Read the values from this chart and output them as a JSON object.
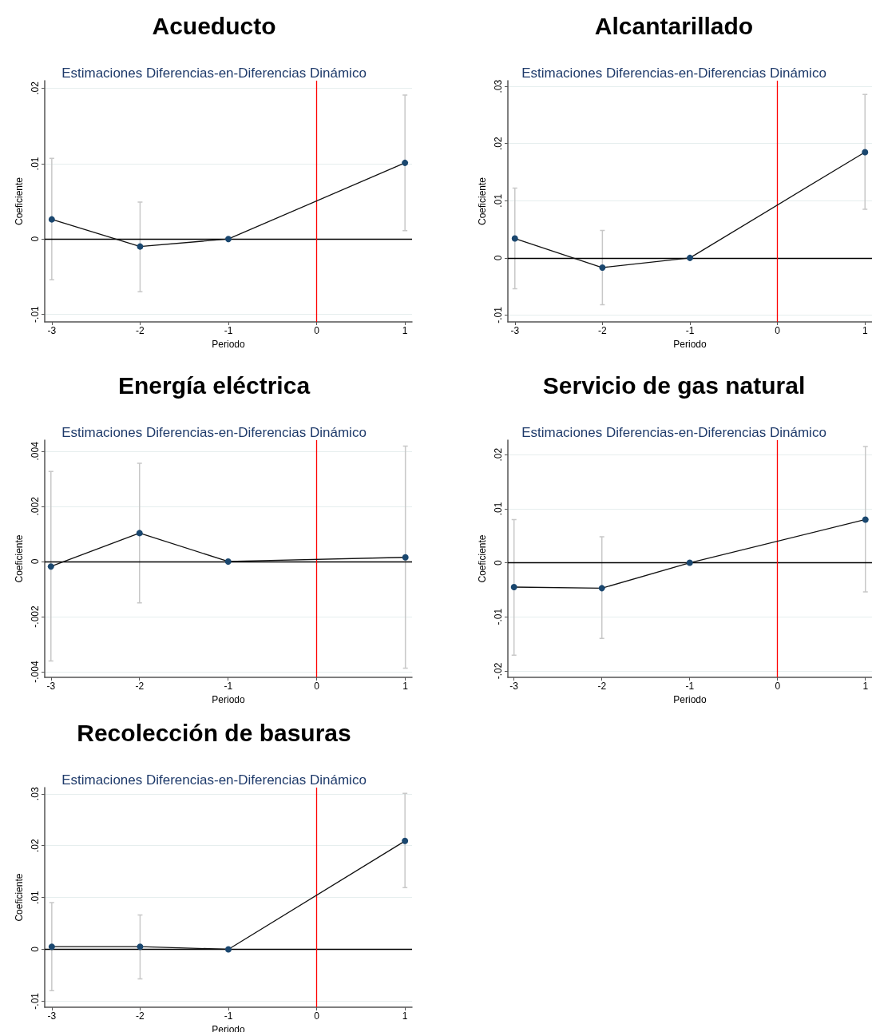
{
  "chart_data": [
    {
      "type": "line",
      "title": "Acueducto",
      "subtitle": "Estimaciones Diferencias-en-Diferencias Dinámico",
      "xlabel": "Periodo",
      "ylabel": "Coeficiente",
      "x": [
        -3,
        -2,
        -1,
        1
      ],
      "series": [
        {
          "color": "#1a476f",
          "values": [
            0.0026,
            -0.001,
            0,
            0.0101
          ],
          "errors": [
            [
              -0.0054,
              0.0107
            ],
            [
              -0.007,
              0.0049
            ],
            null,
            [
              0.0011,
              0.0191
            ]
          ]
        }
      ],
      "xlim": [
        -3.08,
        1.08
      ],
      "xticks": [
        -3,
        -2,
        -1,
        0,
        1
      ],
      "ylim": [
        -0.011,
        0.021
      ],
      "yticks": [
        {
          "value": -0.01,
          "label": "-.01"
        },
        {
          "value": 0,
          "label": "0"
        },
        {
          "value": 0.01,
          "label": ".01"
        },
        {
          "value": 0.02,
          "label": ".02"
        }
      ],
      "ref_lines": [
        {
          "axis": "y",
          "value": 0,
          "color": "#000000"
        },
        {
          "axis": "x",
          "value": 0,
          "color": "#ff0000"
        }
      ],
      "grid": "y",
      "marker": "circle",
      "line_style": "solid"
    },
    {
      "type": "line",
      "title": "Alcantarillado",
      "subtitle": "Estimaciones Diferencias-en-Diferencias Dinámico",
      "xlabel": "Periodo",
      "ylabel": "Coeficiente",
      "x": [
        -3,
        -2,
        -1,
        1
      ],
      "series": [
        {
          "color": "#1a476f",
          "values": [
            0.0034,
            -0.0017,
            0,
            0.0185
          ],
          "errors": [
            [
              -0.0054,
              0.0122
            ],
            [
              -0.0082,
              0.0048
            ],
            null,
            [
              0.0085,
              0.0286
            ]
          ]
        }
      ],
      "xlim": [
        -3.08,
        1.08
      ],
      "xticks": [
        -3,
        -2,
        -1,
        0,
        1
      ],
      "ylim": [
        -0.0112,
        0.031
      ],
      "yticks": [
        {
          "value": -0.01,
          "label": "-.01"
        },
        {
          "value": 0,
          "label": "0"
        },
        {
          "value": 0.01,
          "label": ".01"
        },
        {
          "value": 0.02,
          "label": ".02"
        },
        {
          "value": 0.03,
          "label": ".03"
        }
      ],
      "ref_lines": [
        {
          "axis": "y",
          "value": 0,
          "color": "#000000"
        },
        {
          "axis": "x",
          "value": 0,
          "color": "#ff0000"
        }
      ],
      "grid": "y",
      "marker": "circle",
      "line_style": "solid"
    },
    {
      "type": "line",
      "title": "Energía eléctrica",
      "subtitle": "Estimaciones Diferencias-en-Diferencias Dinámico",
      "xlabel": "Periodo",
      "ylabel": "Coeficiente",
      "x": [
        -3,
        -2,
        -1,
        1
      ],
      "series": [
        {
          "color": "#1a476f",
          "values": [
            -0.00018,
            0.00103,
            0,
            0.00015
          ],
          "errors": [
            [
              -0.00361,
              0.00326
            ],
            [
              -0.0015,
              0.00356
            ],
            null,
            [
              -0.00387,
              0.00418
            ]
          ]
        }
      ],
      "xlim": [
        -3.07,
        1.075
      ],
      "xticks": [
        -3,
        -2,
        -1,
        0,
        1
      ],
      "ylim": [
        -0.0042,
        0.0044
      ],
      "yticks": [
        {
          "value": -0.004,
          "label": "-.004"
        },
        {
          "value": -0.002,
          "label": "-.002"
        },
        {
          "value": 0,
          "label": "0"
        },
        {
          "value": 0.002,
          "label": ".002"
        },
        {
          "value": 0.004,
          "label": ".004"
        }
      ],
      "ref_lines": [
        {
          "axis": "y",
          "value": 0,
          "color": "#000000"
        },
        {
          "axis": "x",
          "value": 0,
          "color": "#ff0000"
        }
      ],
      "grid": "y",
      "marker": "circle",
      "line_style": "solid"
    },
    {
      "type": "line",
      "title": "Servicio de gas natural",
      "subtitle": "Estimaciones Diferencias-en-Diferencias Dinámico",
      "xlabel": "Periodo",
      "ylabel": "Coeficiente",
      "x": [
        -3,
        -2,
        -1,
        1
      ],
      "series": [
        {
          "color": "#1a476f",
          "values": [
            -0.0045,
            -0.0047,
            0,
            0.008
          ],
          "errors": [
            [
              -0.0171,
              0.008
            ],
            [
              -0.014,
              0.0048
            ],
            null,
            [
              -0.0054,
              0.0215
            ]
          ]
        }
      ],
      "xlim": [
        -3.07,
        1.075
      ],
      "xticks": [
        -3,
        -2,
        -1,
        0,
        1
      ],
      "ylim": [
        -0.0212,
        0.0227
      ],
      "yticks": [
        {
          "value": -0.02,
          "label": "-.02"
        },
        {
          "value": -0.01,
          "label": "-.01"
        },
        {
          "value": 0,
          "label": "0"
        },
        {
          "value": 0.01,
          "label": ".01"
        },
        {
          "value": 0.02,
          "label": ".02"
        }
      ],
      "ref_lines": [
        {
          "axis": "y",
          "value": 0,
          "color": "#000000"
        },
        {
          "axis": "x",
          "value": 0,
          "color": "#ff0000"
        }
      ],
      "grid": "y",
      "marker": "circle",
      "line_style": "solid"
    },
    {
      "type": "line",
      "title": "Recolección de basuras",
      "subtitle": "Estimaciones Diferencias-en-Diferencias Dinámico",
      "xlabel": "Periodo",
      "ylabel": "Coeficiente",
      "x": [
        -3,
        -2,
        -1,
        1
      ],
      "series": [
        {
          "color": "#1a476f",
          "values": [
            0.0005,
            0.0005,
            0,
            0.0209
          ],
          "errors": [
            [
              -0.008,
              0.009
            ],
            [
              -0.0057,
              0.0066
            ],
            null,
            [
              0.0119,
              0.0301
            ]
          ]
        }
      ],
      "xlim": [
        -3.08,
        1.08
      ],
      "xticks": [
        -3,
        -2,
        -1,
        0,
        1
      ],
      "ylim": [
        -0.0112,
        0.0312
      ],
      "yticks": [
        {
          "value": -0.01,
          "label": "-.01"
        },
        {
          "value": 0,
          "label": "0"
        },
        {
          "value": 0.01,
          "label": ".01"
        },
        {
          "value": 0.02,
          "label": ".02"
        },
        {
          "value": 0.03,
          "label": ".03"
        }
      ],
      "ref_lines": [
        {
          "axis": "y",
          "value": 0,
          "color": "#000000"
        },
        {
          "axis": "x",
          "value": 0,
          "color": "#ff0000"
        }
      ],
      "grid": "y",
      "marker": "circle",
      "line_style": "solid"
    }
  ]
}
